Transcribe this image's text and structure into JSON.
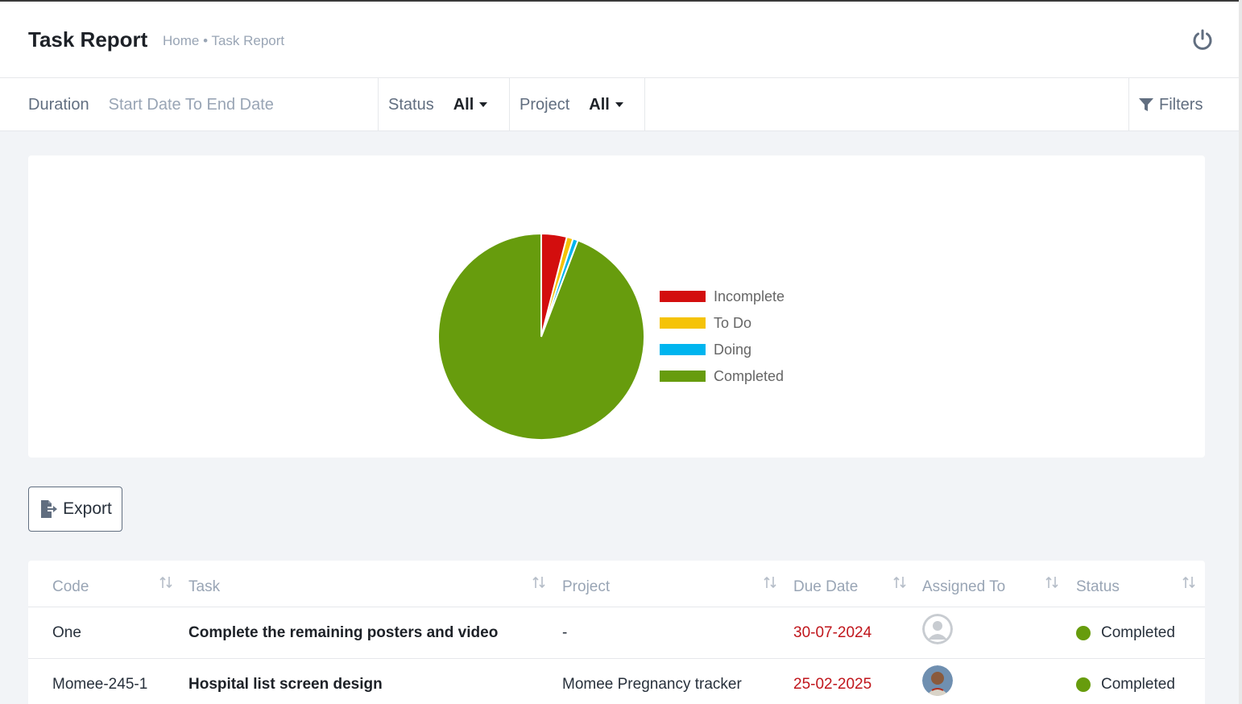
{
  "header": {
    "title": "Task Report",
    "breadcrumb": "Home • Task Report",
    "power_icon": "power-icon"
  },
  "filters": {
    "duration_label": "Duration",
    "duration_value": "Start Date To End Date",
    "status_label": "Status",
    "status_value": "All",
    "project_label": "Project",
    "project_value": "All",
    "filters_label": "Filters",
    "filters_icon": "funnel-icon"
  },
  "chart_data": {
    "type": "pie",
    "labels": [
      "Incomplete",
      "To Do",
      "Doing",
      "Completed"
    ],
    "values": [
      4,
      1,
      0.8,
      94.2
    ],
    "colors": [
      "#d30e0e",
      "#f5c308",
      "#00b5ef",
      "#679c0d"
    ],
    "legend_position": "right"
  },
  "actions": {
    "export_label": "Export",
    "export_icon": "file-export-icon"
  },
  "table": {
    "columns": [
      "Code",
      "Task",
      "Project",
      "Due Date",
      "Assigned To",
      "Status"
    ],
    "rows": [
      {
        "code": "One",
        "task": "Complete the remaining posters and video",
        "project": "-",
        "due": "30-07-2024",
        "assigned": "default-avatar",
        "status": "Completed",
        "status_color": "#679c0d"
      },
      {
        "code": "Momee-245-1",
        "task": "Hospital list screen design",
        "project": "Momee Pregnancy tracker",
        "due": "25-02-2025",
        "assigned": "user-avatar",
        "status": "Completed",
        "status_color": "#679c0d"
      }
    ]
  }
}
